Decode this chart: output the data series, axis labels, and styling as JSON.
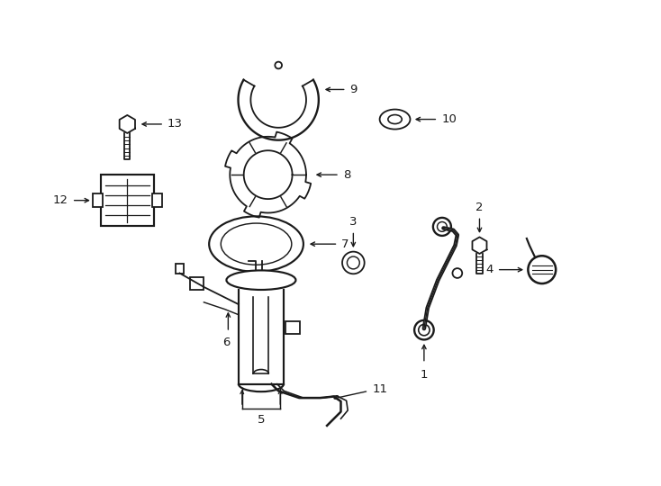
{
  "bg_color": "#ffffff",
  "line_color": "#1a1a1a",
  "fig_width": 7.34,
  "fig_height": 5.4,
  "dpi": 100,
  "label_fontsize": 9.5
}
